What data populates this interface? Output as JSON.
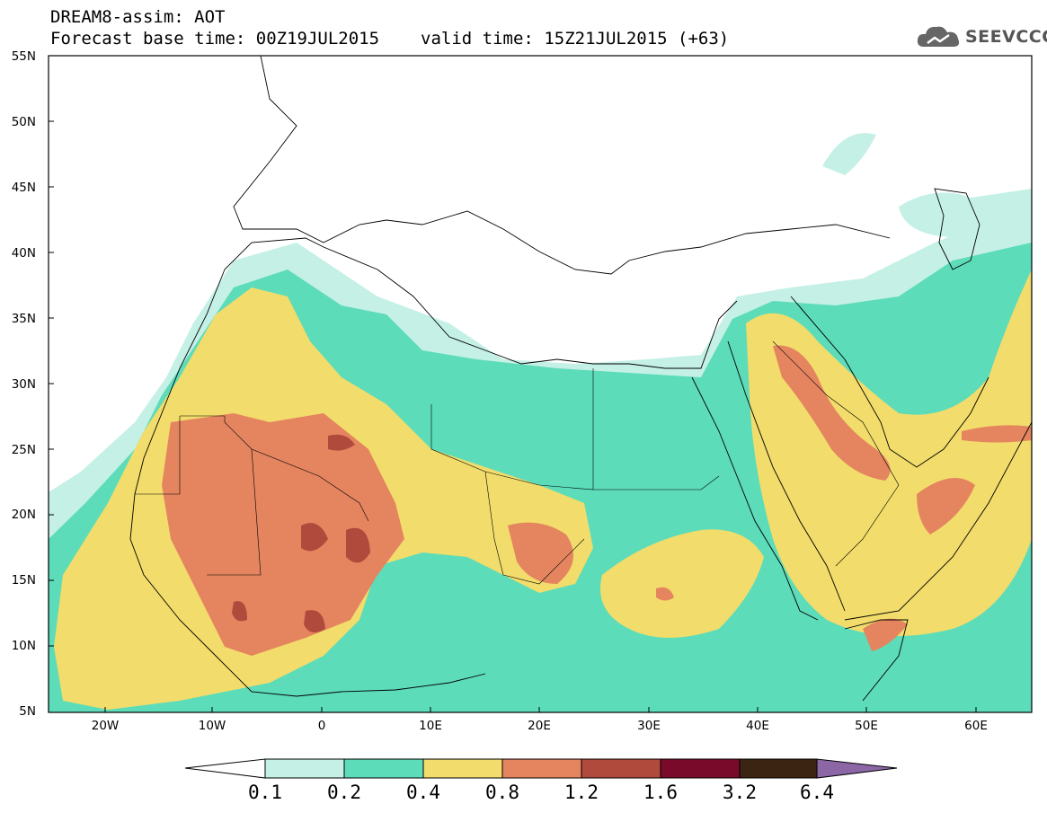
{
  "title": {
    "line1": "DREAM8-assim: AOT",
    "base": "Forecast base time: 00Z19JUL2015",
    "valid": "valid time: 15Z21JUL2015 (+63)"
  },
  "logo": {
    "text": "SEEVCCC",
    "icon": "cloud-icon"
  },
  "map": {
    "projection": "lat-lon",
    "lon_range": [
      -25,
      65
    ],
    "lat_range": [
      5,
      55
    ],
    "lat_labels": [
      "55N",
      "50N",
      "45N",
      "40N",
      "35N",
      "30N",
      "25N",
      "20N",
      "15N",
      "10N",
      "5N"
    ],
    "lon_labels": [
      "20W",
      "10W",
      "0",
      "10E",
      "20E",
      "30E",
      "40E",
      "50E",
      "60E"
    ]
  },
  "colorbar": {
    "levels": [
      "0.1",
      "0.2",
      "0.4",
      "0.8",
      "1.2",
      "1.6",
      "3.2",
      "6.4"
    ],
    "colors": [
      "#ffffff",
      "#c5f0e6",
      "#5ddcb9",
      "#f2dc6b",
      "#e48560",
      "#b04a3c",
      "#7a0a2a",
      "#3b2412",
      "#8c67a6"
    ]
  }
}
